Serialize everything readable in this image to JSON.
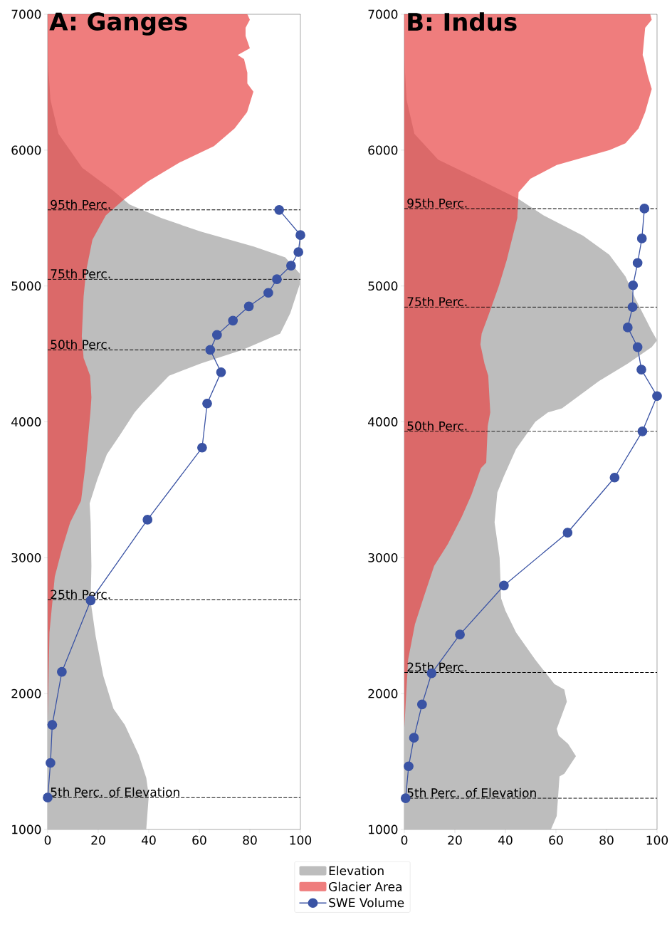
{
  "chart_data": [
    {
      "type": "area",
      "title": "A: Ganges",
      "orientation": "horizontal",
      "xlim": [
        0,
        100
      ],
      "xticks": [
        0,
        20,
        40,
        60,
        80,
        100
      ],
      "ylim": [
        1000,
        7000
      ],
      "yticks": [
        1000,
        2000,
        3000,
        4000,
        5000,
        6000,
        7000
      ],
      "legend": "bottom",
      "series": [
        {
          "name": "Elevation",
          "color": "#bdbdbd",
          "x": [
            1000,
            1250,
            1380,
            1550,
            1770,
            1890,
            2130,
            2420,
            2680,
            2940,
            3260,
            3400,
            3580,
            3760,
            3900,
            4070,
            4140,
            4340,
            4430,
            4530,
            4650,
            4800,
            5010,
            5090,
            5210,
            5290,
            5400,
            5500,
            5600,
            5700,
            5870,
            6120,
            6370,
            6670
          ],
          "values": [
            39,
            40,
            39,
            36,
            30.5,
            26,
            22,
            19,
            17,
            17.3,
            17,
            16.6,
            19.7,
            23.4,
            28.5,
            34.4,
            37.7,
            48,
            60.6,
            77,
            92,
            96,
            99.7,
            99.8,
            94,
            81.5,
            60.6,
            45,
            32.4,
            26,
            13.7,
            4.3,
            1.1,
            0
          ]
        },
        {
          "name": "Glacier Area",
          "color": "#e84646",
          "x": [
            1800,
            2450,
            2860,
            3060,
            3260,
            3420,
            3660,
            3870,
            4070,
            4180,
            4340,
            4470,
            4630,
            4920,
            5110,
            5340,
            5520,
            5640,
            5770,
            5910,
            6030,
            6160,
            6280,
            6430,
            6490,
            6570,
            6670,
            6700,
            6750,
            6840,
            6900,
            6960,
            7000
          ],
          "values": [
            0,
            0.7,
            2.8,
            5.6,
            8.9,
            13.2,
            14.8,
            15.9,
            16.9,
            17.3,
            16.8,
            14.2,
            13.5,
            14.2,
            15.2,
            17.7,
            23,
            30.4,
            39.7,
            52.3,
            65.8,
            74,
            78.9,
            81.4,
            79,
            79,
            77.7,
            75.2,
            80,
            78.3,
            78.3,
            80,
            79
          ]
        },
        {
          "name": "SWE Volume",
          "type": "line",
          "marker": "circle",
          "color": "#3a53a4",
          "x": [
            1235,
            1490,
            1770,
            2160,
            2685,
            3280,
            3810,
            4135,
            4365,
            4530,
            4640,
            4745,
            4850,
            4950,
            5050,
            5150,
            5250,
            5375,
            5560
          ],
          "values": [
            0,
            1.1,
            1.8,
            5.6,
            17,
            39.5,
            61.1,
            63.1,
            68.6,
            64.3,
            67,
            73.3,
            79.6,
            87.3,
            90.7,
            96.3,
            99.2,
            100,
            91.6
          ]
        }
      ],
      "ref_lines": [
        {
          "axis": "y",
          "value": 5560,
          "label": "95th Perc.",
          "color": "#000000",
          "line_style": "dashed"
        },
        {
          "axis": "y",
          "value": 5050,
          "label": "75th Perc.",
          "color": "#000000",
          "line_style": "dashed"
        },
        {
          "axis": "y",
          "value": 4530,
          "label": "50th Perc.",
          "color": "#000000",
          "line_style": "dashed"
        },
        {
          "axis": "y",
          "value": 2690,
          "label": "25th Perc.",
          "color": "#000000",
          "line_style": "dashed"
        },
        {
          "axis": "y",
          "value": 1235,
          "label": "5th Perc. of Elevation",
          "color": "#000000",
          "line_style": "dashed"
        }
      ]
    },
    {
      "type": "area",
      "title": "B: Indus",
      "orientation": "horizontal",
      "xlim": [
        0,
        100
      ],
      "xticks": [
        0,
        20,
        40,
        60,
        80,
        100
      ],
      "ylim": [
        1000,
        7000
      ],
      "yticks": [
        1000,
        2000,
        3000,
        4000,
        5000,
        6000,
        7000
      ],
      "series": [
        {
          "color": "#bdbdbd",
          "x": [
            1000,
            1100,
            1390,
            1410,
            1540,
            1630,
            1690,
            1740,
            1940,
            2030,
            2070,
            2250,
            2450,
            2610,
            2700,
            3000,
            3260,
            3480,
            3600,
            3800,
            4000,
            4070,
            4100,
            4300,
            4430,
            4550,
            4600,
            4670,
            4900,
            5070,
            5230,
            5370,
            5520,
            5640,
            5790,
            5930,
            6120,
            6370,
            6670
          ],
          "values": [
            58,
            60.3,
            61.4,
            63.3,
            67.9,
            64.8,
            61.1,
            60.3,
            64.3,
            63.3,
            59.4,
            51.8,
            44.2,
            40,
            38.3,
            37.7,
            35.7,
            36.8,
            39.4,
            44.2,
            51.8,
            56.8,
            62.4,
            77,
            88.5,
            97.9,
            100,
            97.9,
            91.6,
            87.5,
            81.1,
            70.7,
            55.1,
            45.2,
            29,
            13.4,
            4,
            0.9,
            0
          ]
        },
        {
          "color": "#e84646",
          "x": [
            1750,
            2250,
            2510,
            2700,
            2940,
            3100,
            3300,
            3460,
            3660,
            3700,
            3970,
            4070,
            4340,
            4430,
            4570,
            4650,
            4780,
            5000,
            5190,
            5500,
            5690,
            5790,
            5890,
            6000,
            6050,
            6160,
            6280,
            6450,
            6550,
            6670,
            6700,
            6900,
            6960,
            7000
          ],
          "values": [
            0,
            1.5,
            4.2,
            7.5,
            11.8,
            17.2,
            22.7,
            26.5,
            30.3,
            32.4,
            33,
            34,
            33.2,
            31.7,
            30.1,
            30.6,
            33.2,
            37.4,
            40.5,
            44.7,
            45.2,
            49.9,
            60.3,
            81.2,
            87.5,
            92.7,
            95.3,
            97.9,
            96.3,
            94.8,
            94.3,
            95.3,
            97.9,
            97.3
          ]
        },
        {
          "type": "line",
          "marker": "circle",
          "color": "#3a53a4",
          "x": [
            1230,
            1465,
            1675,
            1920,
            2150,
            2435,
            2795,
            3185,
            3590,
            3930,
            4190,
            4385,
            4550,
            4695,
            4845,
            5005,
            5170,
            5350,
            5570
          ],
          "values": [
            0.5,
            1.7,
            3.8,
            7,
            10.8,
            22,
            39.4,
            64.6,
            83.2,
            94.2,
            100,
            93.8,
            92.3,
            88.4,
            90.3,
            90.5,
            92.3,
            94,
            95
          ]
        }
      ],
      "ref_lines": [
        {
          "axis": "y",
          "value": 5570,
          "label": "95th Perc.",
          "color": "#000000",
          "line_style": "dashed"
        },
        {
          "axis": "y",
          "value": 4845,
          "label": "75th Perc.",
          "color": "#000000",
          "line_style": "dashed"
        },
        {
          "axis": "y",
          "value": 3930,
          "label": "50th Perc.",
          "color": "#000000",
          "line_style": "dashed"
        },
        {
          "axis": "y",
          "value": 2155,
          "label": "25th Perc.",
          "color": "#000000",
          "line_style": "dashed"
        },
        {
          "axis": "y",
          "value": 1230,
          "label": "5th Perc. of Elevation",
          "color": "#000000",
          "line_style": "dashed"
        }
      ]
    }
  ]
}
